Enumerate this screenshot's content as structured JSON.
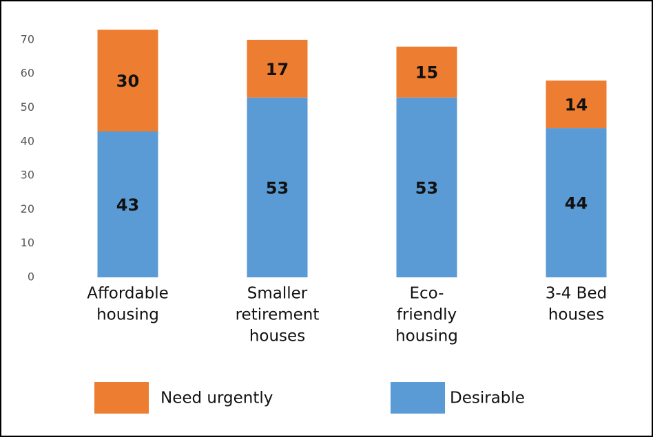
{
  "chart_data": {
    "type": "stacked_bar",
    "categories": [
      [
        "Affordable",
        "housing"
      ],
      [
        "Smaller",
        "retirement",
        "houses"
      ],
      [
        "Eco-",
        "friendly",
        "housing"
      ],
      [
        "3-4 Bed",
        "houses"
      ]
    ],
    "series": [
      {
        "name": "Desirable",
        "color": "#5b9bd5",
        "values": [
          43,
          53,
          53,
          44
        ]
      },
      {
        "name": "Need urgently",
        "color": "#ed7d31",
        "values": [
          30,
          17,
          15,
          14
        ]
      }
    ],
    "ylim": [
      0,
      75
    ],
    "yticks": [
      0,
      10,
      20,
      30,
      40,
      50,
      60,
      70
    ],
    "grid": false
  }
}
